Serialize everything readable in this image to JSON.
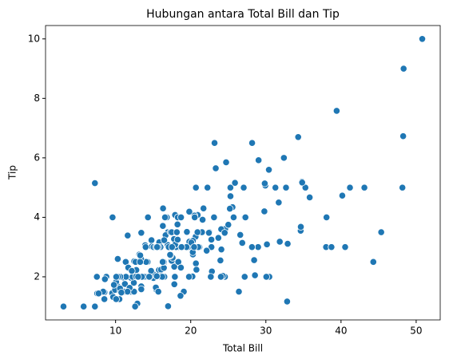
{
  "chart_data": {
    "type": "scatter",
    "title": "Hubungan antara Total Bill dan Tip",
    "xlabel": "Total Bill",
    "ylabel": "Tip",
    "color": "#1f77b4",
    "xlim": [
      0.68,
      53.2
    ],
    "ylim": [
      0.55,
      10.45
    ],
    "xticks": [
      10,
      20,
      30,
      40,
      50
    ],
    "yticks": [
      2,
      4,
      6,
      8,
      10
    ],
    "x": [
      16.99,
      10.34,
      21.01,
      23.68,
      24.59,
      25.29,
      8.77,
      26.88,
      15.04,
      14.78,
      10.27,
      35.26,
      15.42,
      18.43,
      14.83,
      21.58,
      10.33,
      16.29,
      16.97,
      20.65,
      17.92,
      20.29,
      15.77,
      39.42,
      19.82,
      17.81,
      13.37,
      12.69,
      21.7,
      19.65,
      9.55,
      18.35,
      15.06,
      20.69,
      17.78,
      24.06,
      16.31,
      16.93,
      18.69,
      31.27,
      16.04,
      17.46,
      13.94,
      9.68,
      30.4,
      18.29,
      22.23,
      32.4,
      28.55,
      18.04,
      12.54,
      10.29,
      34.81,
      9.94,
      25.56,
      19.49,
      38.01,
      26.41,
      11.24,
      48.27,
      20.29,
      13.81,
      11.02,
      18.29,
      17.59,
      20.08,
      16.45,
      3.07,
      20.23,
      15.01,
      12.02,
      17.07,
      26.86,
      25.28,
      14.73,
      10.51,
      17.92,
      27.2,
      22.76,
      17.29,
      19.44,
      16.66,
      10.07,
      32.68,
      15.98,
      34.83,
      13.03,
      18.28,
      24.71,
      21.16,
      28.97,
      22.49,
      5.75,
      16.32,
      22.75,
      40.17,
      27.28,
      12.03,
      21.01,
      12.46,
      11.35,
      15.38,
      44.3,
      22.42,
      20.92,
      15.36,
      20.49,
      25.21,
      18.24,
      14.31,
      14.0,
      7.25,
      38.07,
      23.95,
      25.71,
      17.31,
      29.93,
      10.65,
      12.43,
      24.08,
      11.69,
      13.42,
      14.26,
      15.95,
      12.48,
      29.8,
      8.52,
      14.52,
      11.38,
      22.82,
      19.08,
      20.27,
      11.17,
      12.26,
      18.26,
      8.51,
      10.33,
      14.15,
      16.0,
      13.16,
      17.47,
      34.3,
      41.19,
      27.05,
      16.43,
      8.35,
      18.64,
      11.87,
      9.78,
      7.51,
      14.07,
      13.13,
      17.26,
      24.55,
      19.77,
      29.85,
      48.17,
      25.0,
      13.39,
      16.49,
      21.5,
      12.66,
      16.21,
      13.81,
      17.51,
      24.52,
      20.76,
      31.71,
      10.59,
      10.63,
      50.81,
      15.81,
      7.25,
      31.85,
      16.82,
      32.9,
      17.89,
      14.48,
      9.6,
      34.63,
      34.65,
      23.33,
      45.35,
      23.17,
      40.55,
      20.69,
      20.9,
      30.46,
      18.15,
      23.1,
      15.69,
      19.81,
      28.44,
      15.48,
      16.58,
      7.56,
      10.34,
      43.11,
      13.0,
      13.51,
      18.71,
      12.74,
      13.0,
      16.4,
      20.53,
      16.47,
      26.59,
      38.73,
      24.27,
      12.76,
      30.06,
      25.89,
      48.33,
      13.27,
      28.17,
      12.9,
      28.15,
      11.59,
      7.74,
      30.14,
      12.16,
      13.42,
      8.58,
      15.98,
      13.42,
      16.27,
      10.09,
      20.45,
      13.28,
      22.12,
      24.01,
      15.69,
      11.61,
      10.77,
      15.53,
      10.07,
      12.6,
      32.83,
      35.83,
      29.03,
      27.18,
      22.67,
      17.82,
      18.78
    ],
    "values": [
      1.01,
      1.66,
      3.5,
      3.31,
      3.61,
      4.71,
      2.0,
      3.12,
      1.96,
      3.23,
      1.71,
      5.0,
      1.57,
      3.0,
      3.02,
      3.92,
      1.67,
      3.71,
      3.5,
      3.35,
      4.08,
      2.75,
      2.23,
      7.58,
      3.18,
      2.34,
      2.0,
      2.0,
      4.3,
      3.0,
      1.45,
      2.5,
      3.0,
      2.45,
      3.27,
      3.6,
      2.0,
      3.07,
      2.31,
      5.0,
      2.24,
      2.54,
      3.06,
      1.32,
      5.6,
      3.0,
      5.0,
      6.0,
      2.05,
      3.0,
      2.5,
      2.6,
      5.2,
      1.56,
      4.34,
      3.51,
      3.0,
      1.5,
      1.76,
      6.73,
      3.21,
      2.0,
      1.98,
      3.76,
      2.64,
      3.15,
      2.47,
      1.0,
      2.01,
      2.09,
      1.97,
      3.0,
      3.14,
      5.0,
      2.2,
      1.25,
      3.08,
      4.0,
      3.0,
      2.71,
      3.0,
      3.4,
      1.83,
      5.0,
      2.03,
      5.17,
      2.0,
      4.0,
      5.85,
      3.0,
      3.0,
      3.5,
      1.0,
      4.3,
      3.25,
      4.73,
      4.0,
      1.5,
      3.0,
      1.5,
      2.5,
      3.0,
      2.5,
      3.48,
      4.08,
      1.64,
      4.06,
      4.29,
      3.76,
      4.0,
      3.0,
      1.0,
      4.0,
      2.55,
      4.0,
      3.5,
      5.07,
      1.5,
      1.8,
      2.92,
      2.31,
      1.68,
      2.5,
      2.0,
      2.52,
      4.2,
      1.48,
      2.0,
      2.0,
      2.18,
      1.5,
      2.83,
      1.5,
      2.0,
      3.25,
      1.25,
      2.0,
      2.0,
      2.0,
      2.75,
      3.5,
      6.7,
      5.0,
      5.0,
      2.3,
      1.5,
      1.36,
      1.63,
      1.73,
      2.0,
      2.5,
      2.0,
      2.74,
      2.0,
      2.0,
      5.14,
      5.0,
      3.75,
      2.61,
      2.0,
      3.5,
      2.5,
      2.0,
      2.0,
      3.0,
      3.48,
      2.24,
      4.5,
      1.61,
      2.0,
      10.0,
      3.16,
      5.15,
      3.18,
      4.0,
      3.11,
      2.0,
      2.0,
      4.0,
      3.55,
      3.68,
      5.65,
      3.5,
      6.5,
      3.0,
      5.0,
      3.5,
      2.0,
      3.5,
      4.0,
      1.5,
      4.19,
      2.56,
      2.02,
      4.0,
      1.44,
      2.0,
      5.0,
      2.0,
      2.0,
      4.0,
      2.01,
      2.0,
      2.5,
      4.0,
      3.23,
      3.41,
      3.0,
      2.03,
      2.23,
      2.0,
      5.16,
      9.0,
      2.5,
      6.5,
      1.1,
      3.0,
      1.5,
      1.44,
      3.09,
      2.2,
      3.48,
      1.92,
      3.0,
      1.58,
      2.5,
      2.0,
      3.0,
      2.72,
      2.88,
      2.0,
      3.0,
      3.39,
      1.47,
      3.0,
      1.25,
      1.0,
      1.17,
      4.67,
      5.92,
      2.0,
      2.0,
      1.75,
      3.0
    ]
  }
}
